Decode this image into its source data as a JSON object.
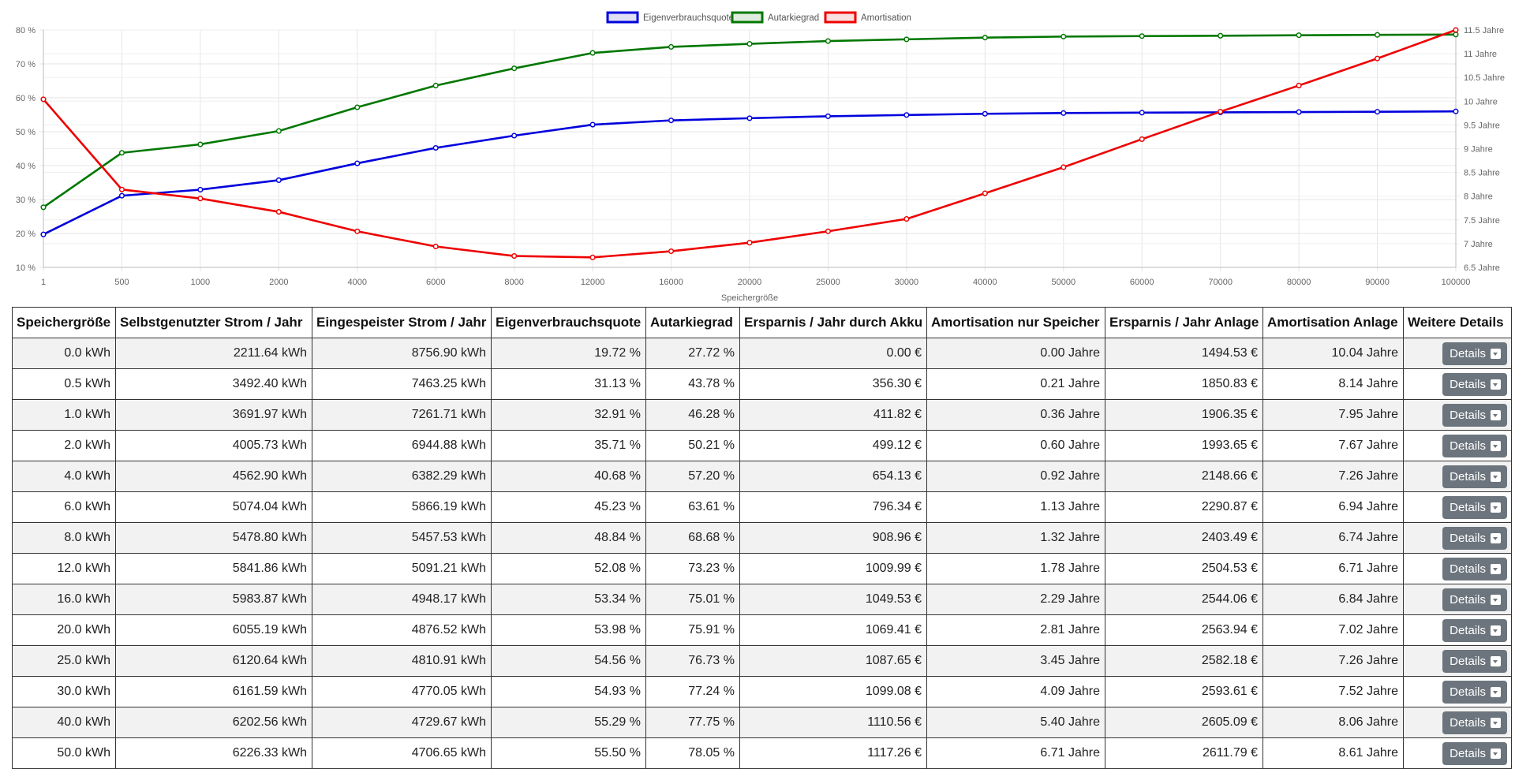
{
  "chart_data": {
    "type": "line",
    "title": "",
    "xlabel": "Speichergröße",
    "categories": [
      "1",
      "500",
      "1000",
      "2000",
      "4000",
      "6000",
      "8000",
      "12000",
      "16000",
      "20000",
      "25000",
      "30000",
      "40000",
      "50000",
      "60000",
      "70000",
      "80000",
      "90000",
      "100000"
    ],
    "y_left_ticks": [
      "80 %",
      "70 %",
      "60 %",
      "50 %",
      "40 %",
      "30 %",
      "20 %",
      "10 %"
    ],
    "y_left_range": [
      10,
      80
    ],
    "y_right_ticks": [
      "11.5 Jahre",
      "11 Jahre",
      "10.5 Jahre",
      "10 Jahre",
      "9.5 Jahre",
      "9 Jahre",
      "8.5 Jahre",
      "8 Jahre",
      "7.5 Jahre",
      "7 Jahre",
      "6.5 Jahre"
    ],
    "y_right_range": [
      6.5,
      11.5
    ],
    "grid": true,
    "legend_position": "top-center",
    "series": [
      {
        "name": "Eigenverbrauchsquote",
        "axis": "left",
        "color": "#0000dd",
        "fill": "#e0e0f4",
        "values": [
          19.72,
          31.13,
          32.91,
          35.71,
          40.68,
          45.23,
          48.84,
          52.08,
          53.34,
          53.98,
          54.56,
          54.93,
          55.29,
          55.5,
          55.62,
          55.71,
          55.8,
          55.88,
          56.0
        ]
      },
      {
        "name": "Autarkiegrad",
        "axis": "left",
        "color": "#007700",
        "fill": "#e0ece0",
        "values": [
          27.72,
          43.78,
          46.28,
          50.21,
          57.2,
          63.61,
          68.68,
          73.23,
          75.01,
          75.91,
          76.73,
          77.24,
          77.75,
          78.05,
          78.2,
          78.3,
          78.45,
          78.55,
          78.65
        ]
      },
      {
        "name": "Amortisation",
        "axis": "right",
        "color": "#ee0000",
        "fill": "#f8e0e0",
        "values": [
          10.04,
          8.14,
          7.95,
          7.67,
          7.26,
          6.94,
          6.74,
          6.71,
          6.84,
          7.02,
          7.26,
          7.52,
          8.06,
          8.61,
          9.2,
          9.78,
          10.33,
          10.9,
          11.5
        ]
      }
    ]
  },
  "table": {
    "headers": [
      "Speichergröße",
      "Selbstgenutzter Strom / Jahr",
      "Eingespeister Strom / Jahr",
      "Eigenverbrauchsquote",
      "Autarkiegrad",
      "Ersparnis / Jahr durch Akku",
      "Amortisation nur Speicher",
      "Ersparnis / Jahr Anlage",
      "Amortisation Anlage",
      "Weitere Details"
    ],
    "details_label": "Details",
    "rows": [
      [
        "0.0 kWh",
        "2211.64 kWh",
        "8756.90 kWh",
        "19.72 %",
        "27.72 %",
        "0.00 €",
        "0.00 Jahre",
        "1494.53 €",
        "10.04 Jahre"
      ],
      [
        "0.5 kWh",
        "3492.40 kWh",
        "7463.25 kWh",
        "31.13 %",
        "43.78 %",
        "356.30 €",
        "0.21 Jahre",
        "1850.83 €",
        "8.14 Jahre"
      ],
      [
        "1.0 kWh",
        "3691.97 kWh",
        "7261.71 kWh",
        "32.91 %",
        "46.28 %",
        "411.82 €",
        "0.36 Jahre",
        "1906.35 €",
        "7.95 Jahre"
      ],
      [
        "2.0 kWh",
        "4005.73 kWh",
        "6944.88 kWh",
        "35.71 %",
        "50.21 %",
        "499.12 €",
        "0.60 Jahre",
        "1993.65 €",
        "7.67 Jahre"
      ],
      [
        "4.0 kWh",
        "4562.90 kWh",
        "6382.29 kWh",
        "40.68 %",
        "57.20 %",
        "654.13 €",
        "0.92 Jahre",
        "2148.66 €",
        "7.26 Jahre"
      ],
      [
        "6.0 kWh",
        "5074.04 kWh",
        "5866.19 kWh",
        "45.23 %",
        "63.61 %",
        "796.34 €",
        "1.13 Jahre",
        "2290.87 €",
        "6.94 Jahre"
      ],
      [
        "8.0 kWh",
        "5478.80 kWh",
        "5457.53 kWh",
        "48.84 %",
        "68.68 %",
        "908.96 €",
        "1.32 Jahre",
        "2403.49 €",
        "6.74 Jahre"
      ],
      [
        "12.0 kWh",
        "5841.86 kWh",
        "5091.21 kWh",
        "52.08 %",
        "73.23 %",
        "1009.99 €",
        "1.78 Jahre",
        "2504.53 €",
        "6.71 Jahre"
      ],
      [
        "16.0 kWh",
        "5983.87 kWh",
        "4948.17 kWh",
        "53.34 %",
        "75.01 %",
        "1049.53 €",
        "2.29 Jahre",
        "2544.06 €",
        "6.84 Jahre"
      ],
      [
        "20.0 kWh",
        "6055.19 kWh",
        "4876.52 kWh",
        "53.98 %",
        "75.91 %",
        "1069.41 €",
        "2.81 Jahre",
        "2563.94 €",
        "7.02 Jahre"
      ],
      [
        "25.0 kWh",
        "6120.64 kWh",
        "4810.91 kWh",
        "54.56 %",
        "76.73 %",
        "1087.65 €",
        "3.45 Jahre",
        "2582.18 €",
        "7.26 Jahre"
      ],
      [
        "30.0 kWh",
        "6161.59 kWh",
        "4770.05 kWh",
        "54.93 %",
        "77.24 %",
        "1099.08 €",
        "4.09 Jahre",
        "2593.61 €",
        "7.52 Jahre"
      ],
      [
        "40.0 kWh",
        "6202.56 kWh",
        "4729.67 kWh",
        "55.29 %",
        "77.75 %",
        "1110.56 €",
        "5.40 Jahre",
        "2605.09 €",
        "8.06 Jahre"
      ],
      [
        "50.0 kWh",
        "6226.33 kWh",
        "4706.65 kWh",
        "55.50 %",
        "78.05 %",
        "1117.26 €",
        "6.71 Jahre",
        "2611.79 €",
        "8.61 Jahre"
      ]
    ]
  }
}
